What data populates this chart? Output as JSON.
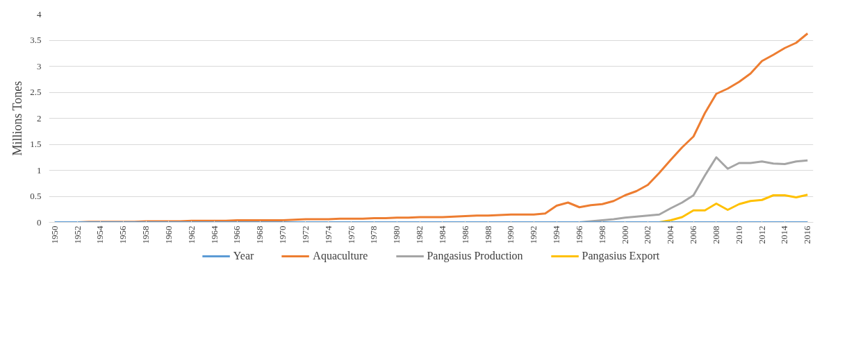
{
  "chart_data": {
    "type": "line",
    "ylabel": "Millions Tones",
    "x": [
      1950,
      1951,
      1952,
      1953,
      1954,
      1955,
      1956,
      1957,
      1958,
      1959,
      1960,
      1961,
      1962,
      1963,
      1964,
      1965,
      1966,
      1967,
      1968,
      1969,
      1970,
      1971,
      1972,
      1973,
      1974,
      1975,
      1976,
      1977,
      1978,
      1979,
      1980,
      1981,
      1982,
      1983,
      1984,
      1985,
      1986,
      1987,
      1988,
      1989,
      1990,
      1991,
      1992,
      1993,
      1994,
      1995,
      1996,
      1997,
      1998,
      1999,
      2000,
      2001,
      2002,
      2003,
      2004,
      2005,
      2006,
      2007,
      2008,
      2009,
      2010,
      2011,
      2012,
      2013,
      2014,
      2015,
      2016
    ],
    "series": [
      {
        "name": "Year",
        "color": "#5b9bd5",
        "values": [
          0,
          0,
          0,
          0,
          0,
          0,
          0,
          0,
          0,
          0,
          0,
          0,
          0,
          0,
          0,
          0,
          0,
          0,
          0,
          0,
          0,
          0,
          0,
          0,
          0,
          0,
          0,
          0,
          0,
          0,
          0,
          0,
          0,
          0,
          0,
          0,
          0,
          0,
          0,
          0,
          0,
          0,
          0,
          0,
          0,
          0,
          0,
          0,
          0,
          0,
          0,
          0,
          0,
          0,
          0,
          0,
          0,
          0,
          0,
          0,
          0,
          0,
          0,
          0,
          0,
          0,
          0
        ]
      },
      {
        "name": "Aquaculture",
        "color": "#ed7d31",
        "values": [
          null,
          null,
          0,
          0.01,
          0.01,
          0.01,
          0.01,
          0.01,
          0.02,
          0.02,
          0.02,
          0.02,
          0.03,
          0.03,
          0.03,
          0.03,
          0.04,
          0.04,
          0.04,
          0.04,
          0.04,
          0.05,
          0.06,
          0.06,
          0.06,
          0.07,
          0.07,
          0.07,
          0.08,
          0.08,
          0.09,
          0.09,
          0.1,
          0.1,
          0.1,
          0.11,
          0.12,
          0.13,
          0.13,
          0.14,
          0.15,
          0.15,
          0.15,
          0.17,
          0.32,
          0.38,
          0.29,
          0.33,
          0.35,
          0.41,
          0.52,
          0.6,
          0.72,
          0.95,
          1.2,
          1.44,
          1.65,
          2.1,
          2.47,
          2.57,
          2.7,
          2.86,
          3.1,
          3.22,
          3.35,
          3.45,
          3.63
        ]
      },
      {
        "name": "Pangasius Production",
        "color": "#a5a5a5",
        "values": [
          null,
          null,
          null,
          null,
          null,
          null,
          null,
          null,
          null,
          null,
          null,
          null,
          null,
          null,
          null,
          null,
          null,
          null,
          null,
          null,
          null,
          null,
          null,
          null,
          null,
          null,
          null,
          null,
          null,
          null,
          null,
          null,
          null,
          null,
          null,
          null,
          null,
          null,
          null,
          null,
          null,
          null,
          null,
          null,
          null,
          null,
          0,
          0.02,
          0.04,
          0.06,
          0.09,
          0.11,
          0.13,
          0.15,
          0.27,
          0.38,
          0.52,
          0.9,
          1.25,
          1.03,
          1.14,
          1.14,
          1.17,
          1.13,
          1.12,
          1.17,
          1.19
        ]
      },
      {
        "name": "Pangasius Export",
        "color": "#ffc000",
        "values": [
          null,
          null,
          null,
          null,
          null,
          null,
          null,
          null,
          null,
          null,
          null,
          null,
          null,
          null,
          null,
          null,
          null,
          null,
          null,
          null,
          null,
          null,
          null,
          null,
          null,
          null,
          null,
          null,
          null,
          null,
          null,
          null,
          null,
          null,
          null,
          null,
          null,
          null,
          null,
          null,
          null,
          null,
          null,
          null,
          null,
          null,
          null,
          null,
          null,
          null,
          null,
          null,
          null,
          0,
          0.04,
          0.1,
          0.23,
          0.23,
          0.36,
          0.24,
          0.35,
          0.41,
          0.43,
          0.52,
          0.52,
          0.48,
          0.53
        ]
      }
    ],
    "xlim": [
      1949.5,
      2016.5
    ],
    "xticks": [
      1950,
      1952,
      1954,
      1956,
      1958,
      1960,
      1962,
      1964,
      1966,
      1968,
      1970,
      1972,
      1974,
      1976,
      1978,
      1980,
      1982,
      1984,
      1986,
      1988,
      1990,
      1992,
      1994,
      1996,
      1998,
      2000,
      2002,
      2004,
      2006,
      2008,
      2010,
      2012,
      2014,
      2016
    ],
    "ylim": [
      0,
      4
    ],
    "yticks": [
      0,
      0.5,
      1,
      1.5,
      2,
      2.5,
      3,
      3.5,
      4
    ],
    "grid": "y",
    "legend": "bottom",
    "line_style": "solid",
    "marker": "none"
  }
}
